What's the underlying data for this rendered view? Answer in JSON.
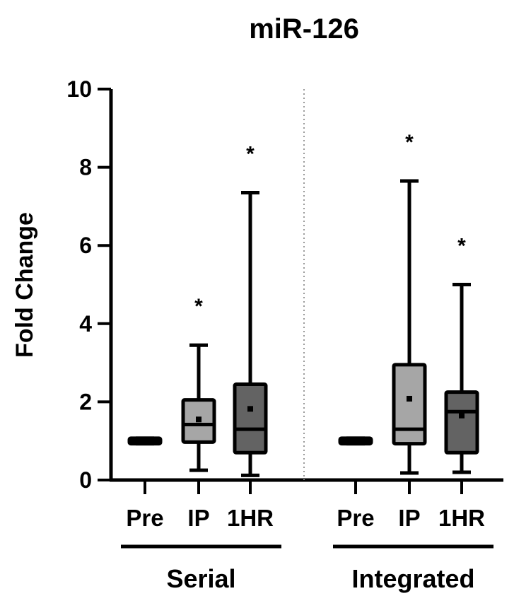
{
  "chart_data": {
    "type": "boxplot",
    "title": "miR-126",
    "ylabel": "Fold Change",
    "xlabel": "",
    "ylim": [
      0,
      10
    ],
    "yticks": [
      "0",
      "2",
      "4",
      "6",
      "8",
      "10"
    ],
    "grid": false,
    "legend": "none",
    "groups": [
      {
        "label": "Serial",
        "boxes": [
          {
            "category": "Pre",
            "min": 0.93,
            "q1": 0.93,
            "median": 1.0,
            "q3": 1.07,
            "max": 1.07,
            "mean": 1.0,
            "color": "#000000",
            "sig": ""
          },
          {
            "category": "IP",
            "min": 0.25,
            "q1": 0.97,
            "median": 1.42,
            "q3": 2.05,
            "max": 3.45,
            "mean": 1.55,
            "color": "#a6a6a6",
            "sig": "*"
          },
          {
            "category": "1HR",
            "min": 0.12,
            "q1": 0.7,
            "median": 1.3,
            "q3": 2.45,
            "max": 7.35,
            "mean": 1.82,
            "color": "#636363",
            "sig": "*"
          }
        ]
      },
      {
        "label": "Integrated",
        "boxes": [
          {
            "category": "Pre",
            "min": 0.93,
            "q1": 0.93,
            "median": 1.0,
            "q3": 1.07,
            "max": 1.07,
            "mean": 1.0,
            "color": "#000000",
            "sig": ""
          },
          {
            "category": "IP",
            "min": 0.18,
            "q1": 0.93,
            "median": 1.3,
            "q3": 2.95,
            "max": 7.65,
            "mean": 2.08,
            "color": "#a6a6a6",
            "sig": "*"
          },
          {
            "category": "1HR",
            "min": 0.2,
            "q1": 0.7,
            "median": 1.75,
            "q3": 2.25,
            "max": 5.0,
            "mean": 1.65,
            "color": "#636363",
            "sig": "*"
          }
        ]
      }
    ]
  }
}
